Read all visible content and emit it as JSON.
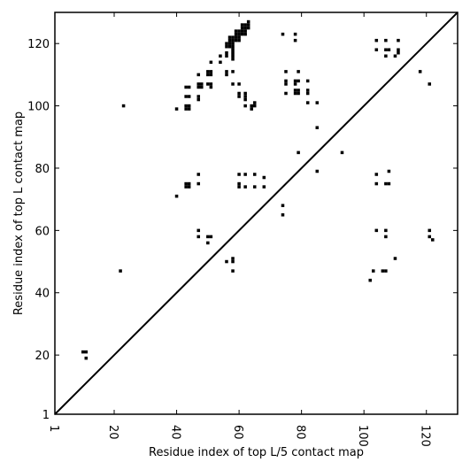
{
  "chart_data": {
    "type": "heatmap",
    "title": "",
    "xlabel": "Residue index of top L/5 contact map",
    "ylabel": "Residue index of top L contact map",
    "xlim": [
      1,
      130
    ],
    "ylim": [
      1,
      130
    ],
    "x_ticks": [
      {
        "value": 1,
        "label": "1"
      },
      {
        "value": 20,
        "label": "20"
      },
      {
        "value": 40,
        "label": "40"
      },
      {
        "value": 60,
        "label": "60"
      },
      {
        "value": 80,
        "label": "80"
      },
      {
        "value": 100,
        "label": "100"
      },
      {
        "value": 120,
        "label": "120"
      }
    ],
    "y_ticks": [
      {
        "value": 1,
        "label": "1"
      },
      {
        "value": 20,
        "label": "20"
      },
      {
        "value": 40,
        "label": "40"
      },
      {
        "value": 60,
        "label": "60"
      },
      {
        "value": 80,
        "label": "80"
      },
      {
        "value": 100,
        "label": "100"
      },
      {
        "value": 120,
        "label": "120"
      }
    ],
    "diagonal": true,
    "grid": false,
    "cell_color": "#000000",
    "contacts": [
      [
        10,
        21
      ],
      [
        11,
        21
      ],
      [
        11,
        19
      ],
      [
        22,
        47
      ],
      [
        23,
        100
      ],
      [
        40,
        99
      ],
      [
        40,
        71
      ],
      [
        43,
        106
      ],
      [
        44,
        106
      ],
      [
        43,
        103
      ],
      [
        44,
        103
      ],
      [
        43,
        100
      ],
      [
        44,
        100
      ],
      [
        43,
        99
      ],
      [
        44,
        99
      ],
      [
        43,
        75
      ],
      [
        44,
        75
      ],
      [
        43,
        74
      ],
      [
        44,
        74
      ],
      [
        47,
        110
      ],
      [
        47,
        107
      ],
      [
        48,
        107
      ],
      [
        47,
        106
      ],
      [
        48,
        106
      ],
      [
        47,
        103
      ],
      [
        47,
        102
      ],
      [
        47,
        78
      ],
      [
        47,
        75
      ],
      [
        47,
        60
      ],
      [
        47,
        58
      ],
      [
        50,
        111
      ],
      [
        51,
        111
      ],
      [
        50,
        110
      ],
      [
        51,
        110
      ],
      [
        51,
        114
      ],
      [
        50,
        107
      ],
      [
        51,
        107
      ],
      [
        51,
        106
      ],
      [
        50,
        58
      ],
      [
        51,
        58
      ],
      [
        50,
        56
      ],
      [
        54,
        114
      ],
      [
        54,
        116
      ],
      [
        56,
        120
      ],
      [
        56,
        119
      ],
      [
        56,
        117
      ],
      [
        56,
        116
      ],
      [
        56,
        111
      ],
      [
        56,
        110
      ],
      [
        56,
        50
      ],
      [
        57,
        122
      ],
      [
        58,
        122
      ],
      [
        57,
        121
      ],
      [
        58,
        121
      ],
      [
        57,
        120
      ],
      [
        58,
        120
      ],
      [
        57,
        119
      ],
      [
        58,
        119
      ],
      [
        58,
        118
      ],
      [
        58,
        117
      ],
      [
        58,
        116
      ],
      [
        58,
        115
      ],
      [
        58,
        111
      ],
      [
        58,
        107
      ],
      [
        58,
        51
      ],
      [
        58,
        50
      ],
      [
        58,
        47
      ],
      [
        59,
        124
      ],
      [
        60,
        124
      ],
      [
        59,
        123
      ],
      [
        60,
        123
      ],
      [
        59,
        122
      ],
      [
        60,
        122
      ],
      [
        59,
        121
      ],
      [
        60,
        121
      ],
      [
        60,
        107
      ],
      [
        60,
        104
      ],
      [
        60,
        103
      ],
      [
        60,
        78
      ],
      [
        60,
        75
      ],
      [
        60,
        74
      ],
      [
        61,
        126
      ],
      [
        62,
        126
      ],
      [
        61,
        125
      ],
      [
        62,
        125
      ],
      [
        61,
        124
      ],
      [
        62,
        124
      ],
      [
        61,
        123
      ],
      [
        62,
        123
      ],
      [
        62,
        104
      ],
      [
        62,
        103
      ],
      [
        62,
        102
      ],
      [
        62,
        100
      ],
      [
        62,
        78
      ],
      [
        62,
        74
      ],
      [
        63,
        127
      ],
      [
        63,
        126
      ],
      [
        63,
        125
      ],
      [
        64,
        100
      ],
      [
        64,
        99
      ],
      [
        65,
        101
      ],
      [
        65,
        100
      ],
      [
        65,
        78
      ],
      [
        65,
        74
      ],
      [
        68,
        77
      ],
      [
        68,
        74
      ],
      [
        74,
        123
      ],
      [
        74,
        68
      ],
      [
        74,
        65
      ],
      [
        75,
        111
      ],
      [
        75,
        108
      ],
      [
        75,
        107
      ],
      [
        75,
        104
      ],
      [
        78,
        123
      ],
      [
        78,
        121
      ],
      [
        78,
        108
      ],
      [
        78,
        107
      ],
      [
        78,
        105
      ],
      [
        78,
        104
      ],
      [
        79,
        111
      ],
      [
        79,
        108
      ],
      [
        79,
        105
      ],
      [
        79,
        104
      ],
      [
        79,
        85
      ],
      [
        82,
        108
      ],
      [
        82,
        105
      ],
      [
        82,
        104
      ],
      [
        82,
        101
      ],
      [
        85,
        101
      ],
      [
        85,
        93
      ],
      [
        85,
        79
      ],
      [
        93,
        85
      ],
      [
        102,
        44
      ],
      [
        103,
        47
      ],
      [
        104,
        121
      ],
      [
        104,
        118
      ],
      [
        104,
        78
      ],
      [
        104,
        75
      ],
      [
        104,
        60
      ],
      [
        106,
        47
      ],
      [
        107,
        47
      ],
      [
        107,
        121
      ],
      [
        107,
        118
      ],
      [
        108,
        118
      ],
      [
        107,
        116
      ],
      [
        107,
        75
      ],
      [
        108,
        75
      ],
      [
        107,
        60
      ],
      [
        107,
        58
      ],
      [
        108,
        79
      ],
      [
        110,
        51
      ],
      [
        110,
        116
      ],
      [
        111,
        121
      ],
      [
        111,
        118
      ],
      [
        111,
        117
      ],
      [
        118,
        111
      ],
      [
        121,
        107
      ],
      [
        121,
        60
      ],
      [
        121,
        58
      ],
      [
        122,
        57
      ]
    ]
  }
}
